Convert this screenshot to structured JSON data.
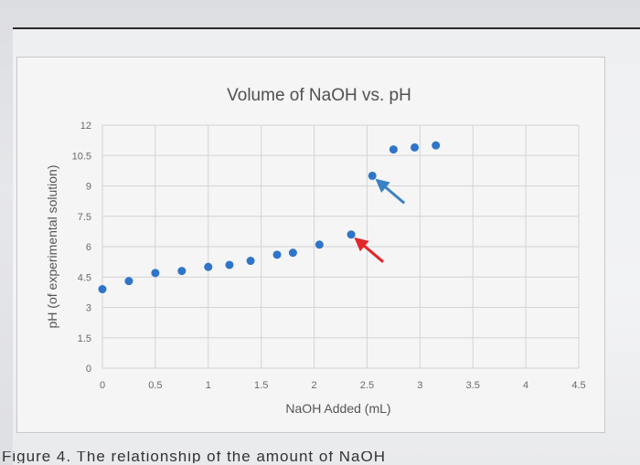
{
  "chart_data": {
    "type": "scatter",
    "title": "Volume of NaOH vs. pH",
    "xlabel": "NaOH Added (mL)",
    "ylabel": "pH (of experimental solution)",
    "xlim": [
      0,
      4.5
    ],
    "ylim": [
      0,
      12
    ],
    "xticks": [
      "0",
      "0.5",
      "1",
      "1.5",
      "2",
      "2.5",
      "3",
      "3.5",
      "4",
      "4.5"
    ],
    "yticks": [
      "0",
      "1.5",
      "3",
      "4.5",
      "6",
      "7.5",
      "9",
      "10.5",
      "12"
    ],
    "grid": true,
    "series": [
      {
        "color": "#2e75c9",
        "x": [
          0,
          0.25,
          0.5,
          0.75,
          1.0,
          1.2,
          1.4,
          1.65,
          1.8,
          2.05,
          2.35,
          2.55,
          2.75,
          2.95,
          3.15
        ],
        "y": [
          3.9,
          4.3,
          4.7,
          4.8,
          5.0,
          5.1,
          5.3,
          5.6,
          5.7,
          6.1,
          6.6,
          9.5,
          10.8,
          10.9,
          11.0
        ]
      }
    ],
    "annotations": [
      {
        "type": "arrow",
        "color": "#e0282a",
        "points_to_index": 10
      },
      {
        "type": "arrow",
        "color": "#3b82c4",
        "points_to_index": 11
      }
    ]
  },
  "caption": "Figure 4. The relationship of the amount of NaOH"
}
